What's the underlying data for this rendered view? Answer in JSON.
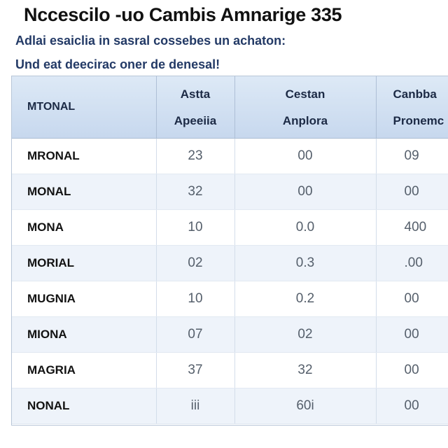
{
  "header": {
    "title": "Nccescilo -uo Cambis Amnarige 335",
    "subtitle_line1": "Adlai esaiclia in sasral cossebes un achaton:",
    "subtitle_line2": "Und eat deecirac oner de denesal!"
  },
  "table": {
    "corner_label": "MTONAL",
    "columns": [
      {
        "line1": "Astta",
        "line2": "Apeeiia"
      },
      {
        "line1": "Cestan",
        "line2": "Anplora"
      },
      {
        "line1": "Canbba",
        "line2": "Pronemc"
      }
    ],
    "rows": [
      {
        "name": "MRONAL",
        "values": [
          "23",
          "00",
          "09"
        ]
      },
      {
        "name": "MONAL",
        "values": [
          "32",
          "00",
          "00"
        ]
      },
      {
        "name": "MONA",
        "values": [
          "10",
          "0.0",
          "400"
        ]
      },
      {
        "name": "MORIAL",
        "values": [
          "02",
          "0.3",
          ".00"
        ]
      },
      {
        "name": "MUGNIA",
        "values": [
          "10",
          "0.2",
          "00"
        ]
      },
      {
        "name": "MIONA",
        "values": [
          "07",
          "02",
          "00"
        ]
      },
      {
        "name": "MAGRIA",
        "values": [
          "37",
          "32",
          "00"
        ]
      },
      {
        "name": "NONAL",
        "values": [
          "iii",
          "60i",
          "00"
        ]
      }
    ]
  }
}
